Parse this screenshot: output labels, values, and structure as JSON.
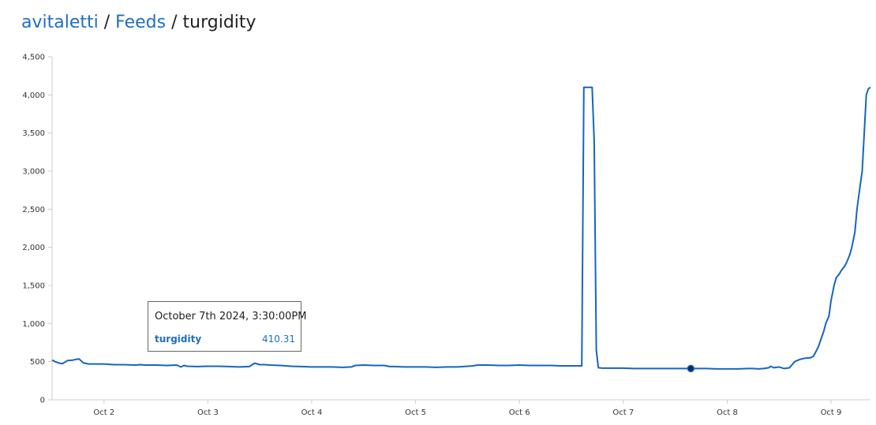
{
  "breadcrumb": {
    "user": "avitaletti",
    "sep1": "/",
    "feeds": "Feeds",
    "sep2": "/",
    "feed": "turgidity"
  },
  "tooltip": {
    "timestamp": "October 7th 2024, 3:30:00PM",
    "series": "turgidity",
    "value": "410.31"
  },
  "colors": {
    "line": "#1565c0",
    "link": "#1d6fc1",
    "axis": "#cccccc"
  },
  "chart_data": {
    "type": "line",
    "title": "",
    "xlabel": "",
    "ylabel": "",
    "xlim": [
      1.5,
      9.38
    ],
    "ylim": [
      0,
      4500
    ],
    "yticks": [
      0,
      500,
      1000,
      1500,
      2000,
      2500,
      3000,
      3500,
      4000,
      4500
    ],
    "ytick_labels": [
      "0",
      "500",
      "1,000",
      "1,500",
      "2,000",
      "2,500",
      "3,000",
      "3,500",
      "4,000",
      "4,500"
    ],
    "xticks": [
      2,
      3,
      4,
      5,
      6,
      7,
      8,
      9
    ],
    "xtick_labels": [
      "Oct 2",
      "Oct 3",
      "Oct 4",
      "Oct 5",
      "Oct 6",
      "Oct 7",
      "Oct 8",
      "Oct 9"
    ],
    "grid": false,
    "legend": "none",
    "highlight": {
      "x": 7.65,
      "y": 410.31
    },
    "series": [
      {
        "x": [
          1.5,
          1.53,
          1.57,
          1.6,
          1.65,
          1.7,
          1.73,
          1.76,
          1.8,
          1.85,
          1.9,
          2.0,
          2.1,
          2.2,
          2.3,
          2.35,
          2.4,
          2.5,
          2.6,
          2.7,
          2.74,
          2.77,
          2.8,
          2.9,
          3.0,
          3.1,
          3.2,
          3.3,
          3.4,
          3.45,
          3.5,
          3.55,
          3.6,
          3.7,
          3.8,
          3.9,
          4.0,
          4.1,
          4.2,
          4.3,
          4.38,
          4.42,
          4.5,
          4.6,
          4.7,
          4.75,
          4.8,
          4.9,
          5.0,
          5.1,
          5.2,
          5.3,
          5.4,
          5.5,
          5.55,
          5.6,
          5.7,
          5.8,
          5.9,
          6.0,
          6.1,
          6.2,
          6.3,
          6.4,
          6.5,
          6.6,
          6.6,
          6.62,
          6.67,
          6.7,
          6.72,
          6.74,
          6.76,
          6.8,
          6.9,
          7.0,
          7.1,
          7.2,
          7.3,
          7.4,
          7.5,
          7.6,
          7.65,
          7.7,
          7.8,
          7.9,
          8.0,
          8.1,
          8.2,
          8.25,
          8.3,
          8.35,
          8.4,
          8.42,
          8.45,
          8.5,
          8.55,
          8.6,
          8.65,
          8.7,
          8.73,
          8.75,
          8.8,
          8.83,
          8.85,
          8.88,
          8.9,
          8.93,
          8.95,
          8.98,
          9.0,
          9.03,
          9.05,
          9.08,
          9.1,
          9.13,
          9.15,
          9.18,
          9.2,
          9.23,
          9.25,
          9.28,
          9.3,
          9.32,
          9.34,
          9.36,
          9.38
        ],
        "y": [
          520,
          500,
          480,
          475,
          515,
          520,
          530,
          535,
          485,
          470,
          470,
          470,
          460,
          460,
          455,
          460,
          455,
          455,
          450,
          455,
          430,
          450,
          440,
          435,
          440,
          440,
          435,
          430,
          435,
          480,
          460,
          460,
          455,
          450,
          440,
          435,
          430,
          430,
          430,
          425,
          430,
          450,
          455,
          450,
          450,
          435,
          435,
          430,
          430,
          430,
          425,
          430,
          430,
          440,
          445,
          455,
          455,
          450,
          450,
          455,
          450,
          450,
          450,
          445,
          445,
          445,
          450,
          4100,
          4100,
          4100,
          3400,
          650,
          420,
          415,
          415,
          415,
          410,
          410,
          410,
          410,
          410,
          410,
          410,
          410,
          410,
          405,
          405,
          405,
          410,
          410,
          405,
          410,
          420,
          440,
          420,
          430,
          410,
          420,
          500,
          530,
          540,
          545,
          550,
          570,
          620,
          700,
          780,
          900,
          1000,
          1100,
          1300,
          1500,
          1600,
          1650,
          1700,
          1750,
          1800,
          1900,
          2000,
          2200,
          2500,
          2800,
          3000,
          3500,
          4000,
          4080,
          4100
        ]
      }
    ]
  }
}
